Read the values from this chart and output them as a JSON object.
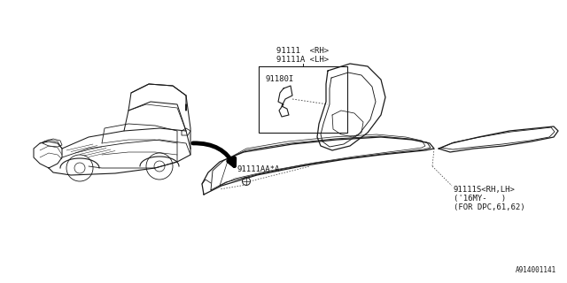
{
  "bg_color": "#ffffff",
  "line_color": "#1a1a1a",
  "dashed_color": "#444444",
  "label_91111_rh": "91111  <RH>",
  "label_91111a_lh": "91111A <LH>",
  "label_91180i": "91180I",
  "label_91111aa_a": "91111AA*A",
  "label_91111s": "91111S<RH,LH>",
  "label_16my": "('16MY-   )",
  "label_dpc": "(FOR DPC,61,62)",
  "label_ref": "A914001141",
  "font_size": 6.5,
  "small_font": 5.5
}
